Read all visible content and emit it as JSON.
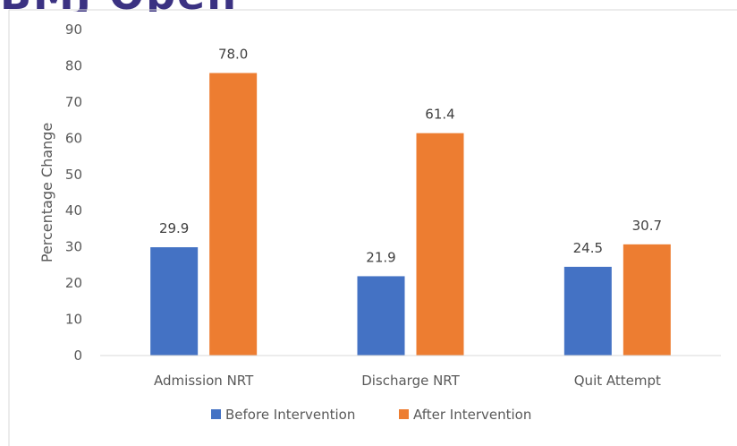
{
  "banner": {
    "text": "BMJ Open",
    "color": "#3b3282"
  },
  "chart_data": {
    "type": "bar",
    "title": "",
    "xlabel": "",
    "ylabel": "Percentage Change",
    "categories": [
      "Admission NRT",
      "Discharge NRT",
      "Quit Attempt"
    ],
    "series": [
      {
        "name": "Before Intervention",
        "color": "#4472c4",
        "values": [
          29.9,
          21.9,
          24.5
        ]
      },
      {
        "name": "After Intervention",
        "color": "#ed7d31",
        "values": [
          78.0,
          61.4,
          30.7
        ]
      }
    ],
    "ylim": [
      0,
      90
    ],
    "yticks": [
      0,
      10,
      20,
      30,
      40,
      50,
      60,
      70,
      80,
      90
    ],
    "grid": false,
    "legend": "bottom",
    "data_labels": true
  }
}
